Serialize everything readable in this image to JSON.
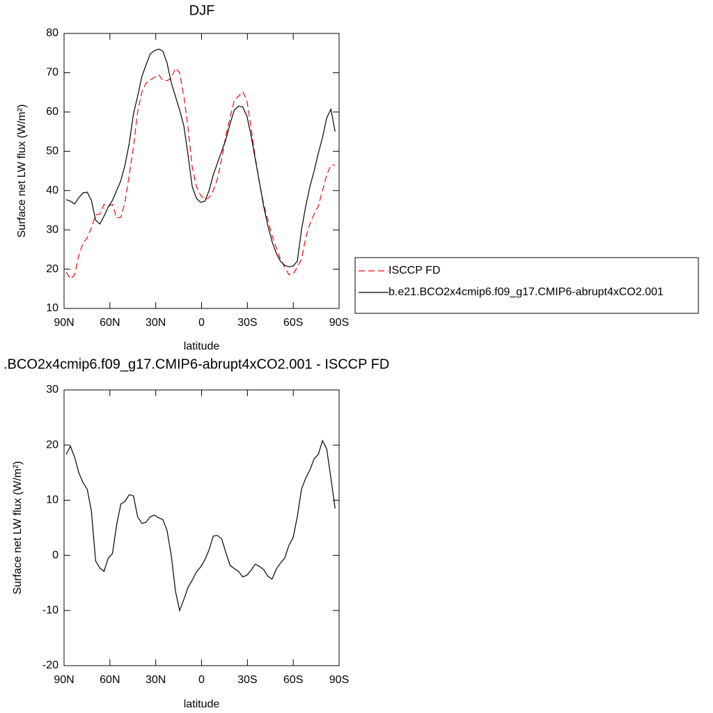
{
  "chart_data": [
    {
      "type": "line",
      "title": "DJF",
      "xlabel": "latitude",
      "ylabel": "Surface net LW flux (W/m²)",
      "x": [
        88.6,
        85.85,
        83.1,
        80.35,
        77.6,
        74.85,
        72.1,
        69.35,
        66.6,
        63.85,
        61.1,
        58.35,
        55.6,
        52.85,
        50.1,
        47.35,
        44.6,
        41.85,
        39.1,
        36.35,
        33.6,
        30.85,
        28.1,
        25.35,
        22.6,
        19.85,
        17.1,
        14.35,
        11.6,
        8.85,
        6.1,
        3.35,
        0.6,
        -2.15,
        -4.9,
        -7.65,
        -10.4,
        -13.15,
        -15.9,
        -18.65,
        -21.4,
        -24.15,
        -26.9,
        -29.65,
        -32.4,
        -35.15,
        -37.9,
        -40.65,
        -43.4,
        -46.15,
        -48.9,
        -51.65,
        -54.4,
        -57.15,
        -59.9,
        -62.65,
        -65.4,
        -68.15,
        -70.9,
        -73.65,
        -76.4,
        -79.15,
        -81.9,
        -84.65,
        -87.4
      ],
      "series": [
        {
          "name": "ISCCP FD",
          "color": "#ff0000",
          "dash": "dashed",
          "values": [
            19.2,
            17.5,
            18.5,
            23.5,
            26.5,
            28,
            30.5,
            33.8,
            34,
            36.5,
            36,
            36.5,
            33,
            33.2,
            37,
            44,
            51,
            60,
            65,
            67.3,
            68.2,
            68.8,
            69.5,
            68,
            68,
            68.5,
            71.2,
            70,
            64,
            56,
            46,
            41,
            38.8,
            37.7,
            38.2,
            40,
            43,
            48,
            54,
            58.5,
            63,
            64,
            65.2,
            63,
            56,
            48.5,
            42,
            36.5,
            32.5,
            28.5,
            25.5,
            22.5,
            20.5,
            18.6,
            18.7,
            20.5,
            22.5,
            28,
            31.5,
            34,
            36,
            40,
            44,
            46.5,
            46.5
          ]
        },
        {
          "name": "b.e21.BCO2x4cmip6.f09_g17.CMIP6-abrupt4xCO2.001",
          "color": "#000000",
          "dash": "solid",
          "values": [
            37.7,
            37.3,
            36.6,
            38.2,
            39.4,
            39.6,
            37.5,
            32.5,
            31.5,
            33.5,
            35.8,
            37.5,
            40,
            42.5,
            46.5,
            52,
            59.5,
            64,
            69,
            72,
            74.8,
            75.6,
            76,
            75.5,
            72.5,
            67.5,
            64,
            60.5,
            56.5,
            49,
            41,
            38,
            37,
            37.3,
            40,
            44,
            47,
            50,
            53,
            57,
            60.5,
            61.5,
            61.3,
            59,
            54,
            48,
            42,
            36,
            31,
            27,
            24,
            22,
            21,
            20.6,
            20.8,
            22,
            30,
            36,
            41,
            45,
            49.5,
            53.5,
            58.5,
            60.7,
            55
          ]
        }
      ],
      "xlim": [
        90,
        -90
      ],
      "xticks": [
        {
          "value": 90,
          "label": "90N"
        },
        {
          "value": 60,
          "label": "60N"
        },
        {
          "value": 30,
          "label": "30N"
        },
        0,
        {
          "value": -30,
          "label": "30S"
        },
        {
          "value": -60,
          "label": "60S"
        },
        {
          "value": -90,
          "label": "90S"
        }
      ],
      "ylim": [
        10,
        80
      ],
      "yticks": [
        10,
        20,
        30,
        40,
        50,
        60,
        70,
        80
      ],
      "legend": "right"
    },
    {
      "type": "line",
      "title": ".BCO2x4cmip6.f09_g17.CMIP6-abrupt4xCO2.001 - ISCCP FD",
      "xlabel": "latitude",
      "ylabel": "Surface net LW flux (W/m²)",
      "x": [
        88.6,
        85.85,
        83.1,
        80.35,
        77.6,
        74.85,
        72.1,
        69.35,
        66.6,
        63.85,
        61.1,
        58.35,
        55.6,
        52.85,
        50.1,
        47.35,
        44.6,
        41.85,
        39.1,
        36.35,
        33.6,
        30.85,
        28.1,
        25.35,
        22.6,
        19.85,
        17.1,
        14.35,
        11.6,
        8.85,
        6.1,
        3.35,
        0.6,
        -2.15,
        -4.9,
        -7.65,
        -10.4,
        -13.15,
        -15.9,
        -18.65,
        -21.4,
        -24.15,
        -26.9,
        -29.65,
        -32.4,
        -35.15,
        -37.9,
        -40.65,
        -43.4,
        -46.15,
        -48.9,
        -51.65,
        -54.4,
        -57.15,
        -59.9,
        -62.65,
        -65.4,
        -68.15,
        -70.9,
        -73.65,
        -76.4,
        -79.15,
        -81.9,
        -84.65,
        -87.4
      ],
      "series": [
        {
          "color": "#000000",
          "dash": "solid",
          "values": [
            18.3,
            19.8,
            17.8,
            15,
            13.2,
            12,
            8,
            -1,
            -2.3,
            -2.9,
            -0.5,
            0.3,
            5.5,
            9.3,
            9.8,
            11,
            10.8,
            7,
            5.8,
            6,
            7,
            7.3,
            6.8,
            6.5,
            4.5,
            0,
            -6.5,
            -10,
            -8,
            -5.8,
            -4.5,
            -3,
            -2.1,
            -0.8,
            1,
            3.5,
            3.6,
            3,
            0.5,
            -1.8,
            -2.4,
            -2.9,
            -3.9,
            -3.6,
            -2.7,
            -1.6,
            -2,
            -2.6,
            -3.8,
            -4.3,
            -2.5,
            -1.4,
            -0.5,
            1.8,
            3.2,
            7,
            12,
            14,
            15.5,
            17.5,
            18.3,
            20.8,
            19.3,
            14,
            8.5
          ]
        }
      ],
      "xlim": [
        90,
        -90
      ],
      "xticks": [
        {
          "value": 90,
          "label": "90N"
        },
        {
          "value": 60,
          "label": "60N"
        },
        {
          "value": 30,
          "label": "30N"
        },
        0,
        {
          "value": -30,
          "label": "30S"
        },
        {
          "value": -60,
          "label": "60S"
        },
        {
          "value": -90,
          "label": "90S"
        }
      ],
      "ylim": [
        -20,
        30
      ],
      "yticks": [
        -20,
        -10,
        0,
        10,
        20,
        30
      ]
    }
  ]
}
